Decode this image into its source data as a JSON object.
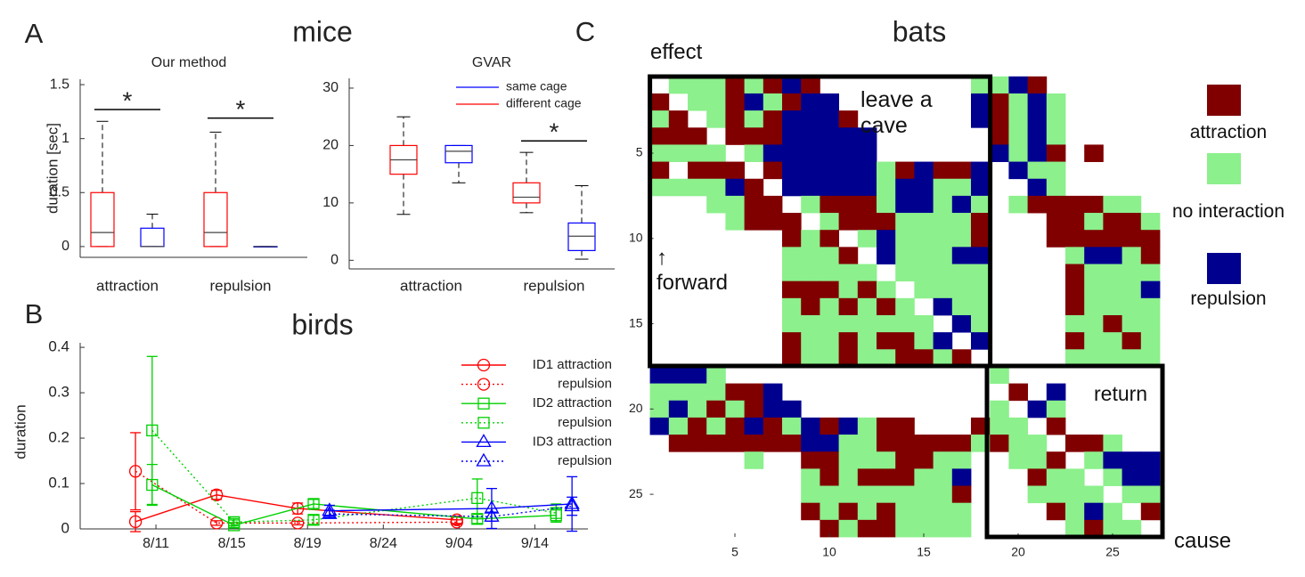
{
  "chart_data": [
    {
      "type": "box",
      "panel": "A",
      "supertitle": "mice",
      "title": "Our method",
      "ylabel": "duration [sec]",
      "categories": [
        "attraction",
        "repulsion"
      ],
      "ylim": [
        -0.1,
        1.55
      ],
      "yticks": [
        0,
        0.5,
        1,
        1.5
      ],
      "series": [
        {
          "color": "#ff0000",
          "boxes": [
            {
              "min": 0,
              "q1": 0,
              "median": 0.13,
              "q3": 0.5,
              "max": 1.16
            },
            {
              "min": 0,
              "q1": 0,
              "median": 0.13,
              "q3": 0.5,
              "max": 1.06
            }
          ]
        },
        {
          "color": "#0000ff",
          "boxes": [
            {
              "min": 0,
              "q1": 0,
              "median": 0,
              "q3": 0.17,
              "max": 0.3
            },
            {
              "min": 0,
              "q1": 0,
              "median": 0,
              "q3": 0,
              "max": 0
            }
          ]
        }
      ],
      "annotations": [
        {
          "text": "*",
          "y": 1.27,
          "category": 0
        },
        {
          "text": "*",
          "y": 1.19,
          "category": 1
        }
      ]
    },
    {
      "type": "box",
      "title": "GVAR",
      "categories": [
        "attraction",
        "repulsion"
      ],
      "ylim": [
        -1.5,
        31.7
      ],
      "yticks": [
        0,
        10,
        20,
        30
      ],
      "series": [
        {
          "name": "same cage",
          "color": "#0000ff",
          "boxes": [
            {
              "min": 13.5,
              "q1": 17,
              "median": 19,
              "q3": 20,
              "max": 20
            },
            {
              "min": 0.2,
              "q1": 1.7,
              "median": 4.2,
              "q3": 6.5,
              "max": 13
            }
          ]
        },
        {
          "name": "different cage",
          "color": "#ff0000",
          "boxes": [
            {
              "min": 8,
              "q1": 15,
              "median": 17.5,
              "q3": 20,
              "max": 25
            },
            {
              "min": 8.3,
              "q1": 10,
              "median": 11,
              "q3": 13.5,
              "max": 18.8
            }
          ]
        }
      ],
      "annotations": [
        {
          "text": "*",
          "y": 20.8,
          "category": 1
        }
      ]
    },
    {
      "type": "line",
      "panel": "B",
      "title": "birds",
      "ylabel": "duration",
      "xlim": [
        0,
        6.7
      ],
      "xticks": [
        {
          "value": 1,
          "label": "8/11"
        },
        {
          "value": 2,
          "label": "8/15"
        },
        {
          "value": 3,
          "label": "8/19"
        },
        {
          "value": 4,
          "label": "8/24"
        },
        {
          "value": 5,
          "label": "9/04"
        },
        {
          "value": 6,
          "label": "9/14"
        }
      ],
      "ylim": [
        0,
        0.41
      ],
      "yticks": [
        0,
        0.1,
        0.2,
        0.3,
        0.4
      ],
      "series": [
        {
          "name": "ID1 attraction",
          "color": "#ff0000",
          "marker": "circle",
          "dash": "solid",
          "x": [
            0.73,
            1.8,
            2.87,
            4.97
          ],
          "values": [
            0.016,
            0.075,
            0.045,
            0.02
          ],
          "errors": [
            0.022,
            0.01,
            0.012,
            0.008
          ]
        },
        {
          "name": "repulsion",
          "color": "#ff0000",
          "marker": "circle",
          "dash": "dotted",
          "x": [
            0.73,
            1.8,
            2.87,
            4.97
          ],
          "values": [
            0.127,
            0.013,
            0.013,
            0.015
          ],
          "errors": [
            0.085,
            0.005,
            0.004,
            0.005
          ]
        },
        {
          "name": "ID2 attraction",
          "color": "#00d000",
          "marker": "square",
          "dash": "solid",
          "x": [
            0.95,
            2.03,
            3.08,
            5.24,
            6.28
          ],
          "values": [
            0.097,
            0.008,
            0.055,
            0.022,
            0.03
          ],
          "errors": [
            0.045,
            0.006,
            0.01,
            0.01,
            0.015
          ]
        },
        {
          "name": "repulsion",
          "color": "#00d000",
          "marker": "square",
          "dash": "dotted",
          "x": [
            0.95,
            2.03,
            3.08,
            5.24,
            6.28
          ],
          "values": [
            0.217,
            0.015,
            0.02,
            0.068,
            0.035
          ],
          "errors": [
            0.163,
            0.008,
            0.01,
            0.042,
            0.02
          ]
        },
        {
          "name": "ID3 attraction",
          "color": "#0000ff",
          "marker": "triangle",
          "dash": "solid",
          "x": [
            3.29,
            5.43,
            6.49
          ],
          "values": [
            0.04,
            0.045,
            0.055
          ],
          "errors": [
            0.012,
            0.044,
            0.06
          ]
        },
        {
          "name": "repulsion",
          "color": "#0000ff",
          "marker": "triangle",
          "dash": "dotted",
          "x": [
            3.29,
            5.43,
            6.49
          ],
          "values": [
            0.033,
            0.027,
            0.05
          ],
          "errors": [
            0.008,
            0.01,
            0.02
          ]
        }
      ]
    },
    {
      "type": "heatmap",
      "panel": "C",
      "title": "bats",
      "xlim": [
        0.5,
        27.5
      ],
      "ylim": [
        0.5,
        27.5
      ],
      "yreverse": true,
      "xticks": [
        5,
        10,
        15,
        20,
        25
      ],
      "yticks": [
        5,
        10,
        15,
        20,
        25
      ],
      "legend": [
        {
          "name": "attraction",
          "color": "#800000"
        },
        {
          "name": "no interaction",
          "color": "#8cf08c"
        },
        {
          "name": "repulsion",
          "color": "#00008f"
        }
      ],
      "annotations": [
        "effect",
        "cause",
        "leave a cave",
        "↑\nforward",
        "return"
      ],
      "cells": [
        [
          null,
          1,
          1,
          1,
          0,
          1,
          0,
          2,
          0,
          null,
          null,
          null,
          null,
          null,
          null,
          null,
          null,
          1,
          1,
          2,
          0,
          null,
          null,
          null,
          null,
          null,
          null
        ],
        [
          0,
          null,
          1,
          1,
          0,
          2,
          1,
          0,
          2,
          2,
          null,
          null,
          null,
          null,
          null,
          null,
          null,
          2,
          0,
          1,
          2,
          1,
          null,
          null,
          null,
          null,
          null
        ],
        [
          1,
          0,
          null,
          1,
          0,
          1,
          0,
          2,
          2,
          2,
          0,
          null,
          null,
          null,
          null,
          null,
          null,
          2,
          0,
          1,
          2,
          1,
          null,
          null,
          null,
          null,
          null
        ],
        [
          0,
          0,
          0,
          null,
          0,
          0,
          0,
          2,
          2,
          2,
          2,
          2,
          null,
          null,
          null,
          null,
          null,
          null,
          0,
          1,
          2,
          1,
          null,
          null,
          null,
          null,
          null
        ],
        [
          1,
          1,
          1,
          1,
          null,
          1,
          2,
          2,
          2,
          2,
          2,
          2,
          null,
          null,
          null,
          null,
          null,
          null,
          2,
          1,
          2,
          0,
          null,
          0,
          null,
          null,
          null
        ],
        [
          0,
          null,
          0,
          0,
          0,
          null,
          0,
          2,
          2,
          2,
          2,
          2,
          1,
          0,
          2,
          0,
          0,
          2,
          null,
          2,
          1,
          1,
          null,
          null,
          null,
          null,
          null
        ],
        [
          1,
          1,
          1,
          1,
          2,
          0,
          null,
          2,
          2,
          2,
          2,
          2,
          1,
          2,
          2,
          1,
          1,
          2,
          null,
          null,
          2,
          1,
          null,
          null,
          null,
          null,
          null
        ],
        [
          null,
          null,
          null,
          1,
          1,
          0,
          0,
          null,
          1,
          0,
          0,
          0,
          1,
          2,
          2,
          1,
          2,
          1,
          null,
          1,
          0,
          0,
          0,
          0,
          1,
          1,
          null
        ],
        [
          null,
          null,
          null,
          null,
          1,
          0,
          0,
          0,
          null,
          1,
          0,
          0,
          0,
          1,
          1,
          1,
          1,
          0,
          null,
          null,
          null,
          0,
          0,
          1,
          0,
          0,
          1
        ],
        [
          null,
          null,
          null,
          null,
          null,
          null,
          null,
          0,
          1,
          0,
          null,
          1,
          2,
          1,
          1,
          1,
          1,
          0,
          null,
          null,
          null,
          0,
          0,
          0,
          0,
          0,
          0
        ],
        [
          null,
          null,
          null,
          null,
          null,
          null,
          null,
          1,
          1,
          1,
          0,
          null,
          2,
          1,
          1,
          1,
          2,
          2,
          null,
          null,
          null,
          null,
          1,
          2,
          2,
          1,
          0
        ],
        [
          null,
          null,
          null,
          null,
          null,
          null,
          null,
          1,
          1,
          1,
          1,
          1,
          null,
          1,
          1,
          1,
          1,
          1,
          null,
          null,
          null,
          null,
          0,
          1,
          1,
          1,
          1
        ],
        [
          null,
          null,
          null,
          null,
          null,
          null,
          null,
          0,
          0,
          0,
          1,
          0,
          1,
          null,
          1,
          1,
          1,
          1,
          null,
          null,
          null,
          null,
          0,
          1,
          1,
          1,
          2
        ],
        [
          null,
          null,
          null,
          null,
          null,
          null,
          null,
          1,
          0,
          1,
          0,
          1,
          0,
          1,
          null,
          2,
          1,
          1,
          null,
          null,
          null,
          null,
          0,
          1,
          1,
          1,
          1
        ],
        [
          null,
          null,
          null,
          null,
          null,
          null,
          null,
          1,
          1,
          1,
          1,
          1,
          1,
          1,
          1,
          null,
          2,
          1,
          null,
          null,
          null,
          null,
          1,
          1,
          0,
          1,
          1
        ],
        [
          null,
          null,
          null,
          null,
          null,
          null,
          null,
          0,
          1,
          1,
          0,
          1,
          0,
          0,
          1,
          2,
          null,
          2,
          null,
          null,
          null,
          null,
          0,
          1,
          1,
          0,
          1
        ],
        [
          null,
          null,
          null,
          null,
          null,
          null,
          null,
          0,
          1,
          1,
          0,
          1,
          1,
          0,
          0,
          1,
          0,
          null,
          null,
          null,
          null,
          null,
          1,
          1,
          1,
          1,
          1
        ],
        [
          2,
          2,
          2,
          1,
          null,
          null,
          null,
          null,
          null,
          null,
          null,
          null,
          null,
          null,
          null,
          null,
          null,
          null,
          1,
          null,
          null,
          null,
          null,
          null,
          null,
          null,
          null
        ],
        [
          1,
          1,
          1,
          1,
          0,
          0,
          2,
          null,
          null,
          null,
          null,
          null,
          null,
          null,
          null,
          null,
          null,
          null,
          null,
          0,
          null,
          2,
          null,
          null,
          null,
          null,
          null
        ],
        [
          1,
          2,
          1,
          0,
          1,
          0,
          2,
          2,
          null,
          null,
          null,
          null,
          null,
          null,
          null,
          null,
          null,
          null,
          1,
          null,
          2,
          1,
          null,
          null,
          null,
          null,
          null
        ],
        [
          2,
          1,
          0,
          1,
          0,
          2,
          0,
          1,
          2,
          0,
          2,
          1,
          0,
          0,
          null,
          null,
          null,
          0,
          1,
          1,
          null,
          0,
          null,
          null,
          null,
          null,
          null
        ],
        [
          null,
          0,
          0,
          0,
          0,
          0,
          0,
          0,
          2,
          2,
          1,
          1,
          0,
          0,
          0,
          0,
          0,
          1,
          0,
          1,
          1,
          null,
          0,
          0,
          1,
          null,
          null
        ],
        [
          null,
          null,
          null,
          null,
          null,
          1,
          null,
          null,
          0,
          0,
          1,
          1,
          1,
          0,
          0,
          1,
          1,
          null,
          null,
          1,
          1,
          0,
          null,
          1,
          2,
          2,
          2
        ],
        [
          null,
          null,
          null,
          null,
          null,
          null,
          null,
          null,
          1,
          0,
          1,
          0,
          0,
          0,
          1,
          1,
          2,
          null,
          null,
          null,
          0,
          1,
          1,
          null,
          1,
          2,
          2
        ],
        [
          null,
          null,
          null,
          null,
          null,
          null,
          null,
          null,
          1,
          1,
          1,
          1,
          1,
          1,
          1,
          1,
          0,
          null,
          null,
          null,
          1,
          1,
          1,
          1,
          null,
          1,
          1
        ],
        [
          null,
          null,
          null,
          null,
          null,
          null,
          null,
          null,
          0,
          1,
          0,
          1,
          0,
          1,
          1,
          1,
          1,
          null,
          null,
          null,
          null,
          0,
          1,
          2,
          1,
          null,
          0
        ],
        [
          null,
          null,
          null,
          null,
          null,
          null,
          null,
          null,
          null,
          0,
          1,
          0,
          0,
          1,
          1,
          1,
          1,
          null,
          null,
          null,
          null,
          null,
          1,
          0,
          1,
          1,
          null
        ]
      ]
    }
  ]
}
